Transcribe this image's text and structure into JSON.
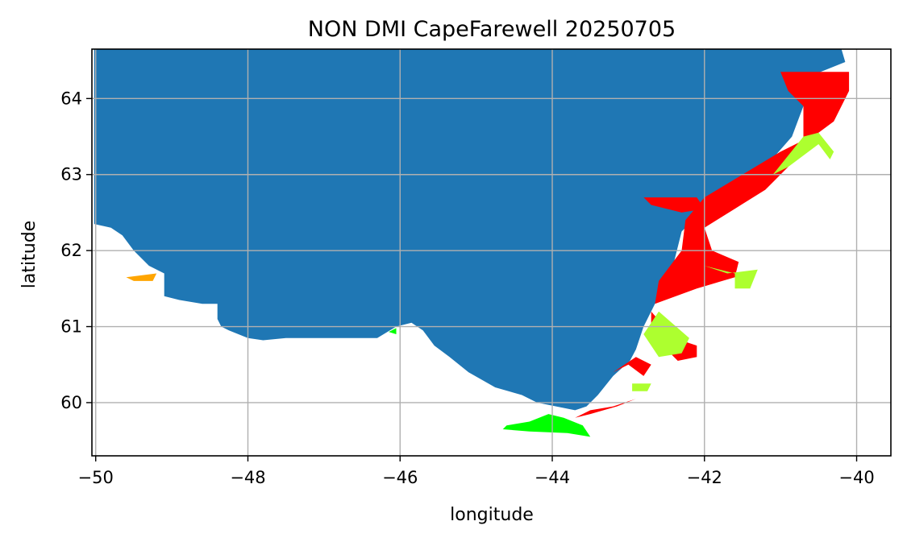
{
  "title": "NON DMI CapeFarewell 20250705",
  "colors": {
    "land": "#1f77b4",
    "ice_red": "#ff0000",
    "ice_yellowgreen": "#adff2f",
    "ice_green": "#00ff00",
    "ice_orange": "#ffa500",
    "grid": "#b0b0b0"
  },
  "chart_data": {
    "type": "map",
    "title": "NON DMI CapeFarewell 20250705",
    "xlabel": "longitude",
    "ylabel": "latitude",
    "xlim": [
      -50.05,
      -39.55
    ],
    "ylim": [
      59.3,
      64.65
    ],
    "grid": true,
    "xticks": [
      -50,
      -48,
      -46,
      -44,
      -42,
      -40
    ],
    "yticks": [
      60,
      61,
      62,
      63,
      64
    ],
    "xtick_labels": [
      "−50",
      "−48",
      "−46",
      "−44",
      "−42",
      "−40"
    ],
    "ytick_labels": [
      "60",
      "61",
      "62",
      "63",
      "64"
    ],
    "layers": [
      {
        "name": "land",
        "color": "#1f77b4",
        "polygons": [
          [
            [
              -50.02,
              64.65
            ],
            [
              -40.2,
              64.65
            ],
            [
              -40.15,
              64.48
            ],
            [
              -40.6,
              64.3
            ],
            [
              -40.7,
              63.9
            ],
            [
              -40.85,
              63.5
            ],
            [
              -41.2,
              63.1
            ],
            [
              -41.7,
              62.8
            ],
            [
              -42.0,
              62.55
            ],
            [
              -42.3,
              62.25
            ],
            [
              -42.4,
              61.85
            ],
            [
              -42.6,
              61.4
            ],
            [
              -42.8,
              61.0
            ],
            [
              -42.9,
              60.7
            ],
            [
              -42.98,
              60.55
            ],
            [
              -43.2,
              60.35
            ],
            [
              -43.4,
              60.1
            ],
            [
              -43.55,
              59.95
            ],
            [
              -43.7,
              59.9
            ],
            [
              -43.95,
              59.95
            ],
            [
              -44.2,
              60.0
            ],
            [
              -44.4,
              60.1
            ],
            [
              -44.75,
              60.2
            ],
            [
              -45.1,
              60.4
            ],
            [
              -45.35,
              60.6
            ],
            [
              -45.55,
              60.75
            ],
            [
              -45.7,
              60.95
            ],
            [
              -45.85,
              61.05
            ],
            [
              -46.05,
              61.0
            ],
            [
              -46.3,
              60.85
            ],
            [
              -46.75,
              60.85
            ],
            [
              -47.1,
              60.85
            ],
            [
              -47.5,
              60.85
            ],
            [
              -47.8,
              60.82
            ],
            [
              -48.0,
              60.85
            ],
            [
              -48.25,
              60.95
            ],
            [
              -48.35,
              61.0
            ],
            [
              -48.4,
              61.1
            ],
            [
              -48.4,
              61.3
            ],
            [
              -48.6,
              61.3
            ],
            [
              -48.9,
              61.35
            ],
            [
              -49.1,
              61.4
            ],
            [
              -49.1,
              61.7
            ],
            [
              -49.3,
              61.8
            ],
            [
              -49.5,
              62.0
            ],
            [
              -49.65,
              62.2
            ],
            [
              -49.8,
              62.3
            ],
            [
              -50.02,
              62.35
            ]
          ]
        ]
      },
      {
        "name": "red ice",
        "color": "#ff0000",
        "polygons": [
          [
            [
              -41.0,
              64.35
            ],
            [
              -40.1,
              64.35
            ],
            [
              -40.1,
              64.1
            ],
            [
              -40.3,
              63.7
            ],
            [
              -40.5,
              63.55
            ],
            [
              -41.0,
              63.3
            ],
            [
              -41.5,
              63.0
            ],
            [
              -42.0,
              62.7
            ],
            [
              -42.25,
              62.4
            ],
            [
              -42.3,
              62.0
            ],
            [
              -42.6,
              61.6
            ],
            [
              -42.65,
              61.3
            ],
            [
              -42.1,
              61.5
            ],
            [
              -41.6,
              61.65
            ],
            [
              -41.55,
              61.85
            ],
            [
              -41.9,
              62.0
            ],
            [
              -42.0,
              62.3
            ],
            [
              -41.6,
              62.55
            ],
            [
              -41.2,
              62.8
            ],
            [
              -40.9,
              63.1
            ],
            [
              -40.7,
              63.5
            ],
            [
              -40.7,
              63.9
            ],
            [
              -40.9,
              64.1
            ]
          ],
          [
            [
              -42.8,
              62.7
            ],
            [
              -42.1,
              62.7
            ],
            [
              -42.0,
              62.55
            ],
            [
              -42.3,
              62.5
            ],
            [
              -42.7,
              62.6
            ]
          ],
          [
            [
              -42.7,
              61.2
            ],
            [
              -42.4,
              60.85
            ],
            [
              -42.1,
              60.75
            ],
            [
              -42.1,
              60.6
            ],
            [
              -42.35,
              60.55
            ],
            [
              -42.5,
              60.7
            ],
            [
              -42.7,
              60.9
            ]
          ],
          [
            [
              -42.7,
              60.5
            ],
            [
              -42.8,
              60.35
            ],
            [
              -43.0,
              60.5
            ],
            [
              -43.2,
              60.4
            ],
            [
              -42.9,
              60.6
            ]
          ],
          [
            [
              -42.8,
              60.15
            ],
            [
              -42.9,
              60.05
            ],
            [
              -43.2,
              59.95
            ],
            [
              -43.5,
              59.9
            ],
            [
              -43.7,
              59.8
            ],
            [
              -43.5,
              59.85
            ],
            [
              -43.15,
              59.95
            ],
            [
              -42.9,
              60.05
            ]
          ]
        ]
      },
      {
        "name": "yellow-green ice",
        "color": "#adff2f",
        "polygons": [
          [
            [
              -40.7,
              63.5
            ],
            [
              -40.5,
              63.55
            ],
            [
              -40.3,
              63.3
            ],
            [
              -40.35,
              63.2
            ],
            [
              -40.5,
              63.4
            ],
            [
              -40.9,
              63.1
            ],
            [
              -41.1,
              63.0
            ]
          ],
          [
            [
              -42.0,
              61.8
            ],
            [
              -41.7,
              61.7
            ],
            [
              -41.3,
              61.75
            ],
            [
              -41.4,
              61.5
            ],
            [
              -41.6,
              61.5
            ],
            [
              -41.6,
              61.7
            ]
          ],
          [
            [
              -42.6,
              61.2
            ],
            [
              -42.2,
              60.85
            ],
            [
              -42.3,
              60.65
            ],
            [
              -42.6,
              60.6
            ],
            [
              -42.8,
              60.9
            ]
          ],
          [
            [
              -42.95,
              60.25
            ],
            [
              -42.7,
              60.25
            ],
            [
              -42.75,
              60.15
            ],
            [
              -42.95,
              60.15
            ]
          ]
        ]
      },
      {
        "name": "green ice",
        "color": "#00ff00",
        "polygons": [
          [
            [
              -44.6,
              59.7
            ],
            [
              -44.3,
              59.75
            ],
            [
              -44.05,
              59.85
            ],
            [
              -43.85,
              59.8
            ],
            [
              -43.6,
              59.7
            ],
            [
              -43.5,
              59.55
            ],
            [
              -43.8,
              59.6
            ],
            [
              -44.3,
              59.62
            ],
            [
              -44.65,
              59.65
            ]
          ],
          [
            [
              -46.05,
              60.98
            ],
            [
              -46.15,
              60.93
            ],
            [
              -46.05,
              60.9
            ]
          ]
        ]
      },
      {
        "name": "orange ice",
        "color": "#ffa500",
        "polygons": [
          [
            [
              -49.6,
              61.65
            ],
            [
              -49.2,
              61.7
            ],
            [
              -49.25,
              61.6
            ],
            [
              -49.5,
              61.6
            ]
          ]
        ]
      }
    ]
  }
}
